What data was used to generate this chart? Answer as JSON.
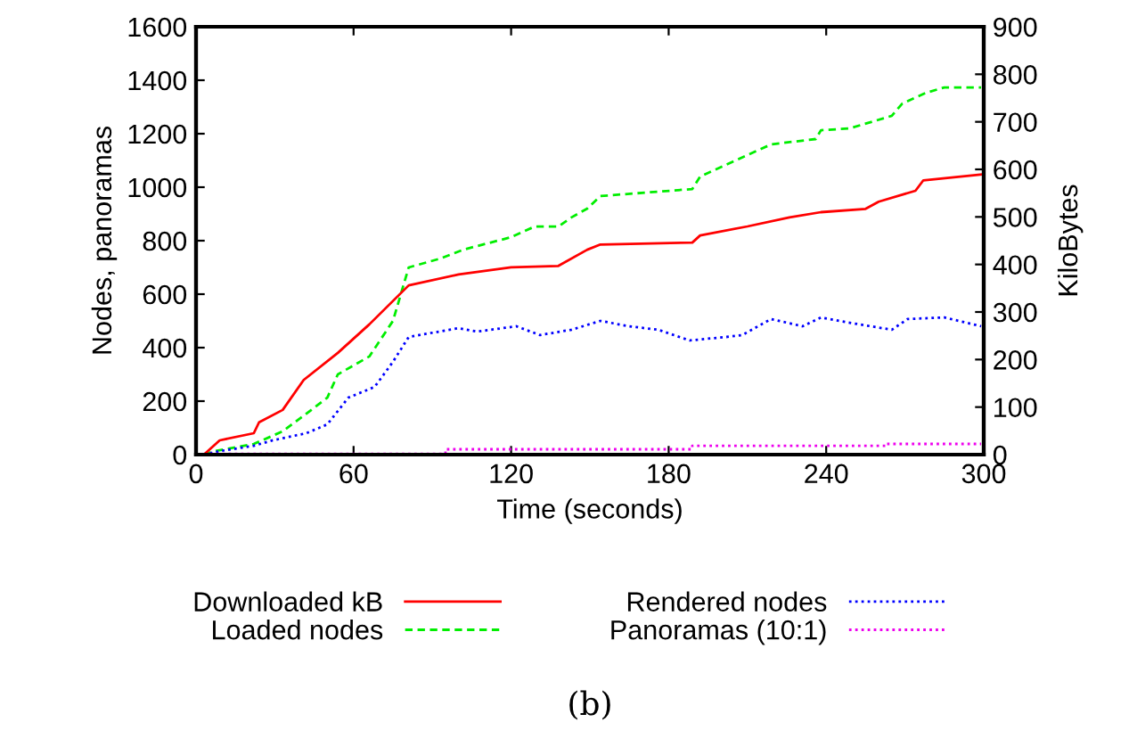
{
  "chart_data": {
    "type": "line",
    "xlabel": "Time (seconds)",
    "ylabel": "Nodes, panoramas",
    "y2label": "KiloBytes",
    "xlim": [
      0,
      300
    ],
    "xticks": [
      0,
      60,
      120,
      180,
      240,
      300
    ],
    "ylim": [
      0,
      1600
    ],
    "yticks": [
      0,
      200,
      400,
      600,
      800,
      1000,
      1200,
      1400,
      1600
    ],
    "y2lim": [
      0,
      900
    ],
    "y2ticks": [
      0,
      100,
      200,
      300,
      400,
      500,
      600,
      700,
      800,
      900
    ],
    "legend": "bottom",
    "grid": false,
    "marker": "none",
    "series": [
      {
        "name": "Downloaded kB",
        "color": "#ff0000",
        "axis": "y2",
        "line_style": "solid",
        "x": [
          3,
          9,
          22,
          24,
          33,
          41,
          54,
          66,
          81,
          100,
          120,
          138,
          149,
          154,
          189,
          192,
          210,
          226,
          238,
          255,
          260,
          274,
          277,
          299
        ],
        "values": [
          0,
          30,
          45,
          68,
          94,
          157,
          214,
          274,
          356,
          379,
          394,
          397,
          431,
          442,
          446,
          461,
          480,
          499,
          510,
          517,
          532,
          555,
          577,
          589
        ]
      },
      {
        "name": "Loaded nodes",
        "color": "#00ee00",
        "line_style": "dashed",
        "x": [
          3,
          7,
          22,
          33,
          42,
          50,
          54,
          66,
          75,
          81,
          93,
          102,
          120,
          129,
          138,
          143,
          149,
          154,
          189,
          192,
          210,
          219,
          236,
          238,
          249,
          265,
          269,
          278,
          285,
          299
        ],
        "values": [
          0,
          13,
          40,
          87,
          153,
          213,
          300,
          367,
          500,
          700,
          733,
          767,
          813,
          853,
          853,
          887,
          920,
          967,
          993,
          1040,
          1120,
          1160,
          1180,
          1213,
          1220,
          1267,
          1313,
          1353,
          1373,
          1373
        ]
      },
      {
        "name": "Rendered nodes",
        "color": "#0000ff",
        "line_style": "dotted",
        "x": [
          3,
          9,
          22,
          29,
          42,
          50,
          58,
          68,
          75,
          81,
          100,
          107,
          122,
          131,
          143,
          154,
          165,
          176,
          188,
          202,
          208,
          219,
          231,
          238,
          249,
          265,
          271,
          285,
          299
        ],
        "values": [
          0,
          13,
          33,
          53,
          80,
          113,
          213,
          253,
          347,
          440,
          473,
          460,
          480,
          447,
          467,
          500,
          480,
          467,
          427,
          440,
          447,
          507,
          480,
          513,
          493,
          467,
          507,
          513,
          480
        ]
      },
      {
        "name": "Panoramas (10:1)",
        "color": "#ee00ee",
        "line_style": "dotted",
        "x": [
          3,
          95,
          95,
          189,
          189,
          263,
          263,
          299
        ],
        "values": [
          3,
          3,
          20,
          20,
          33,
          33,
          40,
          40
        ]
      }
    ],
    "annotations": [
      "(b)"
    ]
  }
}
